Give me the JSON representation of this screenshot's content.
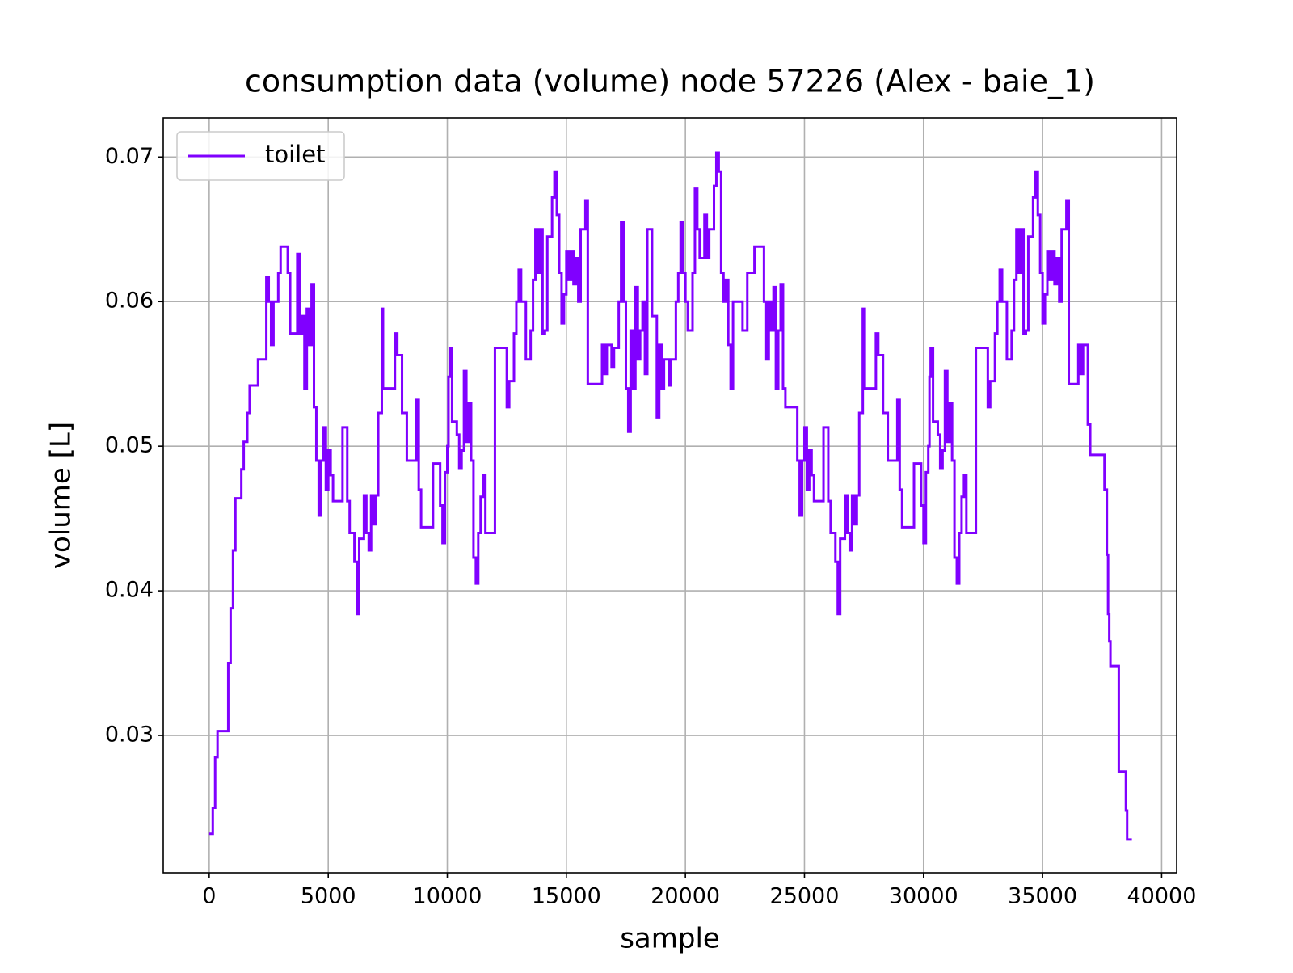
{
  "chart_data": {
    "type": "line",
    "title": "consumption data (volume) node 57226 (Alex - baie_1)",
    "xlabel": "sample",
    "ylabel": "volume [L]",
    "x": [
      0,
      150,
      250,
      350,
      750,
      800,
      900,
      1000,
      1100,
      1300,
      1350,
      1450,
      1600,
      1700,
      2000,
      2050,
      2300,
      2400,
      2500,
      2600,
      2700,
      2800,
      2900,
      3000,
      3200,
      3300,
      3400,
      3600,
      3700,
      3800,
      3900,
      4000,
      4100,
      4200,
      4300,
      4400,
      4500,
      4600,
      4700,
      4800,
      4900,
      5000,
      5100,
      5200,
      5500,
      5600,
      5700,
      5800,
      5900,
      6100,
      6200,
      6300,
      6500,
      6600,
      6700,
      6800,
      6900,
      7000,
      7100,
      7250,
      7300,
      7700,
      7800,
      7900,
      8100,
      8300,
      8600,
      8700,
      8800,
      8900,
      9300,
      9400,
      9600,
      9700,
      9800,
      9900,
      10000,
      10050,
      10100,
      10200,
      10400,
      10500,
      10600,
      10700,
      10800,
      10900,
      11000,
      11100,
      11200,
      11300,
      11400,
      11500,
      11600,
      11900,
      12000,
      12400,
      12500,
      12600,
      12800,
      12900,
      13000,
      13100,
      13300,
      13500,
      13600,
      13700,
      13800,
      13900,
      14000,
      14100,
      14200,
      14400,
      14500,
      14600,
      14700,
      14800,
      14900,
      15000,
      15100,
      15200,
      15300,
      15400,
      15500,
      15600,
      15800,
      15900,
      16400,
      16500,
      16600,
      16700,
      16900,
      17000,
      17100,
      17200,
      17300,
      17400,
      17500,
      17600,
      17700,
      17800,
      17900,
      18000,
      18100,
      18200,
      18300,
      18400,
      18600,
      18800,
      18900,
      19000,
      19100,
      19300,
      19400,
      19600,
      19700,
      19800,
      19900,
      20000,
      20100,
      20300,
      20400,
      20500,
      20600,
      20800,
      20900,
      21000,
      21200,
      21300,
      21400,
      21500,
      21600,
      21700,
      21800,
      21900,
      22000,
      22300,
      22400,
      22600,
      22800,
      22900,
      23100,
      23300,
      23400,
      23500,
      23600,
      23700,
      23800,
      23900,
      24000,
      24100,
      24200,
      24700,
      24800,
      24900,
      25000,
      25100,
      25200,
      25300,
      25400,
      25700,
      25800,
      25900,
      26000,
      26100,
      26300,
      26400,
      26500,
      26700,
      26800,
      26900,
      27000,
      27100,
      27200,
      27300,
      27450,
      27500,
      27900,
      28000,
      28100,
      28300,
      28500,
      28800,
      28900,
      29000,
      29100,
      29500,
      29600,
      29800,
      29900,
      30000,
      30100,
      30200,
      30250,
      30300,
      30400,
      30600,
      30700,
      30800,
      30900,
      31000,
      31100,
      31200,
      31300,
      31400,
      31500,
      31600,
      31700,
      31800,
      32100,
      32200,
      32600,
      32700,
      32800,
      33000,
      33100,
      33200,
      33300,
      33500,
      33700,
      33800,
      33900,
      34000,
      34100,
      34200,
      34300,
      34400,
      34600,
      34700,
      34800,
      34900,
      35000,
      35100,
      35200,
      35300,
      35400,
      35500,
      35600,
      35700,
      35800,
      36000,
      36100,
      36400,
      36500,
      36600,
      36700,
      36900,
      37000,
      37500,
      37600,
      37700,
      37750,
      37800,
      37850,
      38150,
      38200,
      38450,
      38500,
      38550,
      38750
    ],
    "series": [
      {
        "name": "toilet",
        "color": "#8000ff",
        "values": [
          0.0232,
          0.025,
          0.0285,
          0.0303,
          0.0303,
          0.035,
          0.0388,
          0.0428,
          0.0464,
          0.0464,
          0.0484,
          0.0503,
          0.0523,
          0.0542,
          0.0542,
          0.056,
          0.056,
          0.0617,
          0.06,
          0.057,
          0.06,
          0.06,
          0.062,
          0.0638,
          0.0638,
          0.062,
          0.0578,
          0.0578,
          0.0633,
          0.0578,
          0.059,
          0.054,
          0.0595,
          0.057,
          0.0612,
          0.0527,
          0.049,
          0.0452,
          0.049,
          0.0513,
          0.047,
          0.0497,
          0.048,
          0.0462,
          0.0462,
          0.0513,
          0.0513,
          0.0462,
          0.044,
          0.042,
          0.0384,
          0.0436,
          0.0466,
          0.044,
          0.0428,
          0.0466,
          0.0446,
          0.0466,
          0.0523,
          0.0595,
          0.054,
          0.054,
          0.0578,
          0.0563,
          0.0523,
          0.049,
          0.049,
          0.0532,
          0.047,
          0.0444,
          0.0444,
          0.0488,
          0.0488,
          0.0459,
          0.0433,
          0.0482,
          0.05,
          0.0548,
          0.0568,
          0.0517,
          0.0508,
          0.0485,
          0.0497,
          0.0552,
          0.0503,
          0.053,
          0.049,
          0.0423,
          0.0405,
          0.044,
          0.0465,
          0.048,
          0.044,
          0.044,
          0.0568,
          0.0568,
          0.0527,
          0.0545,
          0.0578,
          0.06,
          0.0622,
          0.06,
          0.056,
          0.058,
          0.0615,
          0.065,
          0.062,
          0.065,
          0.0578,
          0.058,
          0.0645,
          0.0672,
          0.069,
          0.066,
          0.062,
          0.0585,
          0.0605,
          0.0635,
          0.0615,
          0.0635,
          0.0612,
          0.063,
          0.06,
          0.065,
          0.067,
          0.0543,
          0.0543,
          0.057,
          0.055,
          0.057,
          0.0555,
          0.0568,
          0.0568,
          0.06,
          0.0655,
          0.06,
          0.054,
          0.051,
          0.058,
          0.054,
          0.061,
          0.056,
          0.058,
          0.06,
          0.055,
          0.065,
          0.059,
          0.052,
          0.057,
          0.054,
          0.056,
          0.0542,
          0.056,
          0.06,
          0.062,
          0.0655,
          0.062,
          0.06,
          0.058,
          0.062,
          0.0678,
          0.065,
          0.063,
          0.066,
          0.063,
          0.065,
          0.068,
          0.0703,
          0.069,
          0.062,
          0.06,
          0.0615,
          0.057,
          0.054,
          0.06,
          0.06,
          0.058,
          0.062,
          0.062,
          0.0638,
          0.0638,
          0.06,
          0.056,
          0.06,
          0.058,
          0.061,
          0.054,
          0.058,
          0.0612,
          0.054,
          0.0527,
          0.049,
          0.0452,
          0.049,
          0.0513,
          0.047,
          0.0497,
          0.048,
          0.0462,
          0.0462,
          0.0513,
          0.0513,
          0.0462,
          0.044,
          0.042,
          0.0384,
          0.0436,
          0.0466,
          0.044,
          0.0428,
          0.0466,
          0.0446,
          0.0466,
          0.0523,
          0.0595,
          0.054,
          0.054,
          0.0578,
          0.0563,
          0.0523,
          0.049,
          0.049,
          0.0532,
          0.047,
          0.0444,
          0.0444,
          0.0488,
          0.0488,
          0.0459,
          0.0433,
          0.0482,
          0.05,
          0.0548,
          0.0568,
          0.0517,
          0.0508,
          0.0485,
          0.0497,
          0.0552,
          0.0503,
          0.053,
          0.049,
          0.0423,
          0.0405,
          0.044,
          0.0465,
          0.048,
          0.044,
          0.044,
          0.0568,
          0.0568,
          0.0527,
          0.0545,
          0.0578,
          0.06,
          0.0622,
          0.06,
          0.056,
          0.058,
          0.0615,
          0.065,
          0.062,
          0.065,
          0.0578,
          0.058,
          0.0645,
          0.0672,
          0.069,
          0.066,
          0.062,
          0.0585,
          0.0605,
          0.0635,
          0.0615,
          0.0635,
          0.0612,
          0.063,
          0.06,
          0.065,
          0.067,
          0.0543,
          0.0543,
          0.057,
          0.055,
          0.057,
          0.0515,
          0.0494,
          0.0494,
          0.047,
          0.0425,
          0.0384,
          0.0365,
          0.0348,
          0.0348,
          0.0275,
          0.0275,
          0.0248,
          0.0228,
          0.0228
        ]
      }
    ],
    "xlim": [
      -1930,
      40630
    ],
    "ylim": [
      0.0205,
      0.0727
    ],
    "xticks": [
      0,
      5000,
      10000,
      15000,
      20000,
      25000,
      30000,
      35000,
      40000
    ],
    "yticks": [
      0.03,
      0.04,
      0.05,
      0.06,
      0.07
    ],
    "grid": true,
    "legend": "upper left"
  }
}
